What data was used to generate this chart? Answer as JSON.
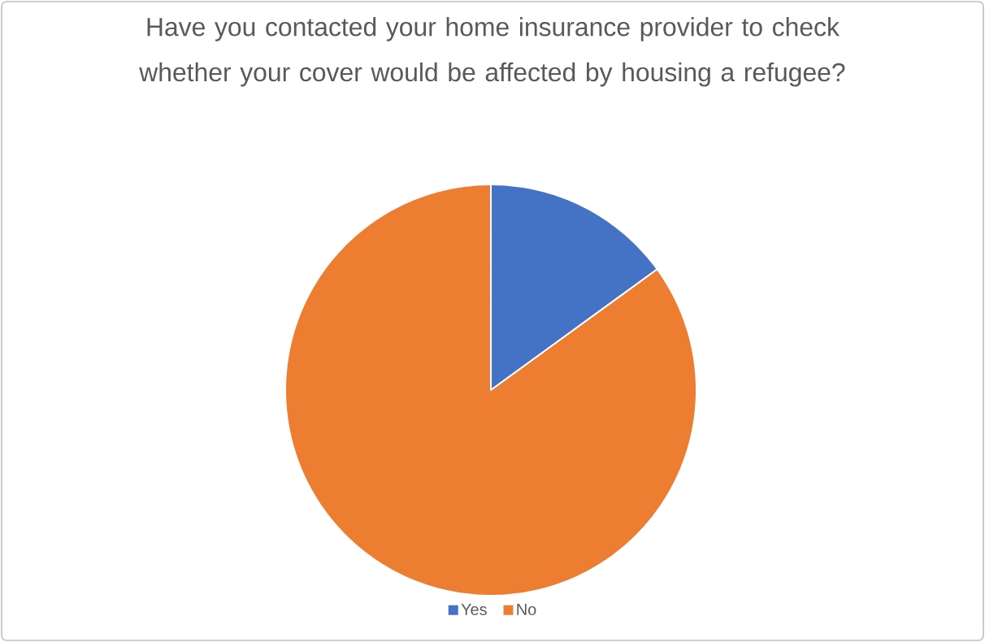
{
  "chart_data": {
    "type": "pie",
    "title": "Have you contacted your home insurance provider to check whether your cover would be affected by housing a refugee?",
    "categories": [
      "Yes",
      "No"
    ],
    "values": [
      15,
      85
    ],
    "colors": [
      "#4472c4",
      "#ed7d31"
    ],
    "legend": "bottom"
  }
}
